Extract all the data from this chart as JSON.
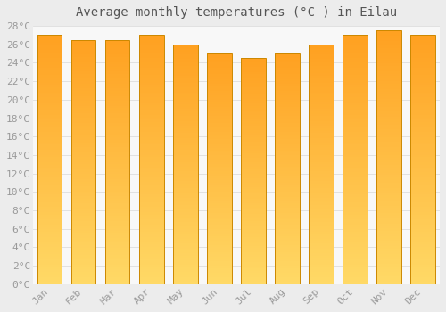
{
  "title": "Average monthly temperatures (°C ) in Eilau",
  "months": [
    "Jan",
    "Feb",
    "Mar",
    "Apr",
    "May",
    "Jun",
    "Jul",
    "Aug",
    "Sep",
    "Oct",
    "Nov",
    "Dec"
  ],
  "values": [
    27.0,
    26.5,
    26.5,
    27.0,
    26.0,
    25.0,
    24.5,
    25.0,
    26.0,
    27.0,
    27.5,
    27.0
  ],
  "bar_color_light": "#FFD966",
  "bar_color_dark": "#FFA020",
  "edge_color": "#CC8800",
  "background_color": "#ececec",
  "plot_bg_color": "#f8f8f8",
  "grid_color": "#dddddd",
  "ylim": [
    0,
    28
  ],
  "ytick_step": 2,
  "title_fontsize": 10,
  "tick_fontsize": 8,
  "tick_color": "#999999",
  "font_family": "monospace"
}
